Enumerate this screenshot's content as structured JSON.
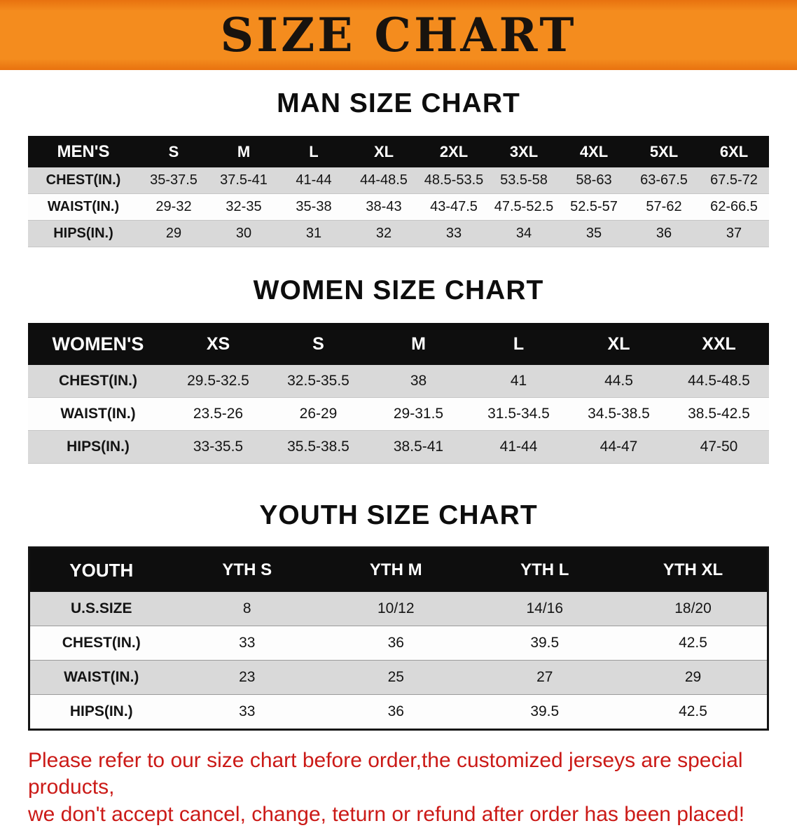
{
  "banner": {
    "title": "SIZE CHART"
  },
  "colors": {
    "banner_bg": "#F48C1E",
    "table_header_bg": "#0E0E0E",
    "row_gray": "#D9D9D9",
    "notice_red": "#CB1A17"
  },
  "men": {
    "title": "MAN SIZE CHART",
    "header": [
      "MEN'S",
      "S",
      "M",
      "L",
      "XL",
      "2XL",
      "3XL",
      "4XL",
      "5XL",
      "6XL"
    ],
    "rows": [
      [
        "CHEST(IN.)",
        "35-37.5",
        "37.5-41",
        "41-44",
        "44-48.5",
        "48.5-53.5",
        "53.5-58",
        "58-63",
        "63-67.5",
        "67.5-72"
      ],
      [
        "WAIST(IN.)",
        "29-32",
        "32-35",
        "35-38",
        "38-43",
        "43-47.5",
        "47.5-52.5",
        "52.5-57",
        "57-62",
        "62-66.5"
      ],
      [
        "HIPS(IN.)",
        "29",
        "30",
        "31",
        "32",
        "33",
        "34",
        "35",
        "36",
        "37"
      ]
    ]
  },
  "women": {
    "title": "WOMEN SIZE CHART",
    "header": [
      "WOMEN'S",
      "XS",
      "S",
      "M",
      "L",
      "XL",
      "XXL"
    ],
    "rows": [
      [
        "CHEST(IN.)",
        "29.5-32.5",
        "32.5-35.5",
        "38",
        "41",
        "44.5",
        "44.5-48.5"
      ],
      [
        "WAIST(IN.)",
        "23.5-26",
        "26-29",
        "29-31.5",
        "31.5-34.5",
        "34.5-38.5",
        "38.5-42.5"
      ],
      [
        "HIPS(IN.)",
        "33-35.5",
        "35.5-38.5",
        "38.5-41",
        "41-44",
        "44-47",
        "47-50"
      ]
    ]
  },
  "youth": {
    "title": "YOUTH SIZE CHART",
    "header": [
      "YOUTH",
      "YTH S",
      "YTH M",
      "YTH L",
      "YTH XL"
    ],
    "rows": [
      [
        "U.S.SIZE",
        "8",
        "10/12",
        "14/16",
        "18/20"
      ],
      [
        "CHEST(IN.)",
        "33",
        "36",
        "39.5",
        "42.5"
      ],
      [
        "WAIST(IN.)",
        "23",
        "25",
        "27",
        "29"
      ],
      [
        "HIPS(IN.)",
        "33",
        "36",
        "39.5",
        "42.5"
      ]
    ]
  },
  "footer": {
    "line1": "Please refer to our size chart before order,the customized jerseys are special products,",
    "line2": "we don't accept cancel, change, teturn or refund after order has been placed!"
  }
}
